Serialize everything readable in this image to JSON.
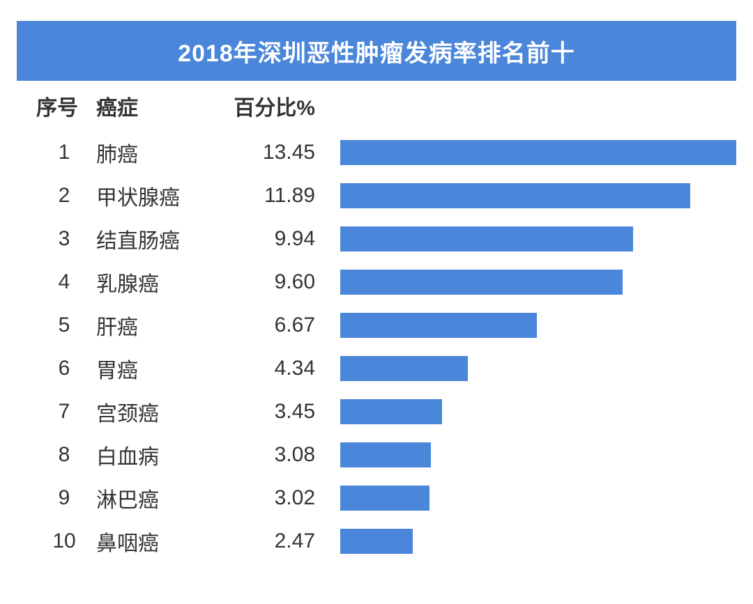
{
  "chart": {
    "type": "bar",
    "title": "2018年深圳恶性肿瘤发病率排名前十",
    "title_fontsize": 34,
    "title_color": "#ffffff",
    "title_bg_color": "#4a86d9",
    "header_fontsize": 30,
    "header_color": "#333333",
    "body_fontsize": 30,
    "body_color": "#333333",
    "bar_color": "#4a86d9",
    "background_color": "#ffffff",
    "bar_max_value": 13.45,
    "columns": {
      "rank": "序号",
      "name": "癌症",
      "value": "百分比%"
    },
    "rows": [
      {
        "rank": "1",
        "name": "肺癌",
        "value": "13.45",
        "num": 13.45
      },
      {
        "rank": "2",
        "name": "甲状腺癌",
        "value": "11.89",
        "num": 11.89
      },
      {
        "rank": "3",
        "name": "结直肠癌",
        "value": "9.94",
        "num": 9.94
      },
      {
        "rank": "4",
        "name": "乳腺癌",
        "value": "9.60",
        "num": 9.6
      },
      {
        "rank": "5",
        "name": "肝癌",
        "value": "6.67",
        "num": 6.67
      },
      {
        "rank": "6",
        "name": "胃癌",
        "value": "4.34",
        "num": 4.34
      },
      {
        "rank": "7",
        "name": "宫颈癌",
        "value": "3.45",
        "num": 3.45
      },
      {
        "rank": "8",
        "name": "白血病",
        "value": "3.08",
        "num": 3.08
      },
      {
        "rank": "9",
        "name": "淋巴癌",
        "value": "3.02",
        "num": 3.02
      },
      {
        "rank": "10",
        "name": "鼻咽癌",
        "value": "2.47",
        "num": 2.47
      }
    ]
  }
}
